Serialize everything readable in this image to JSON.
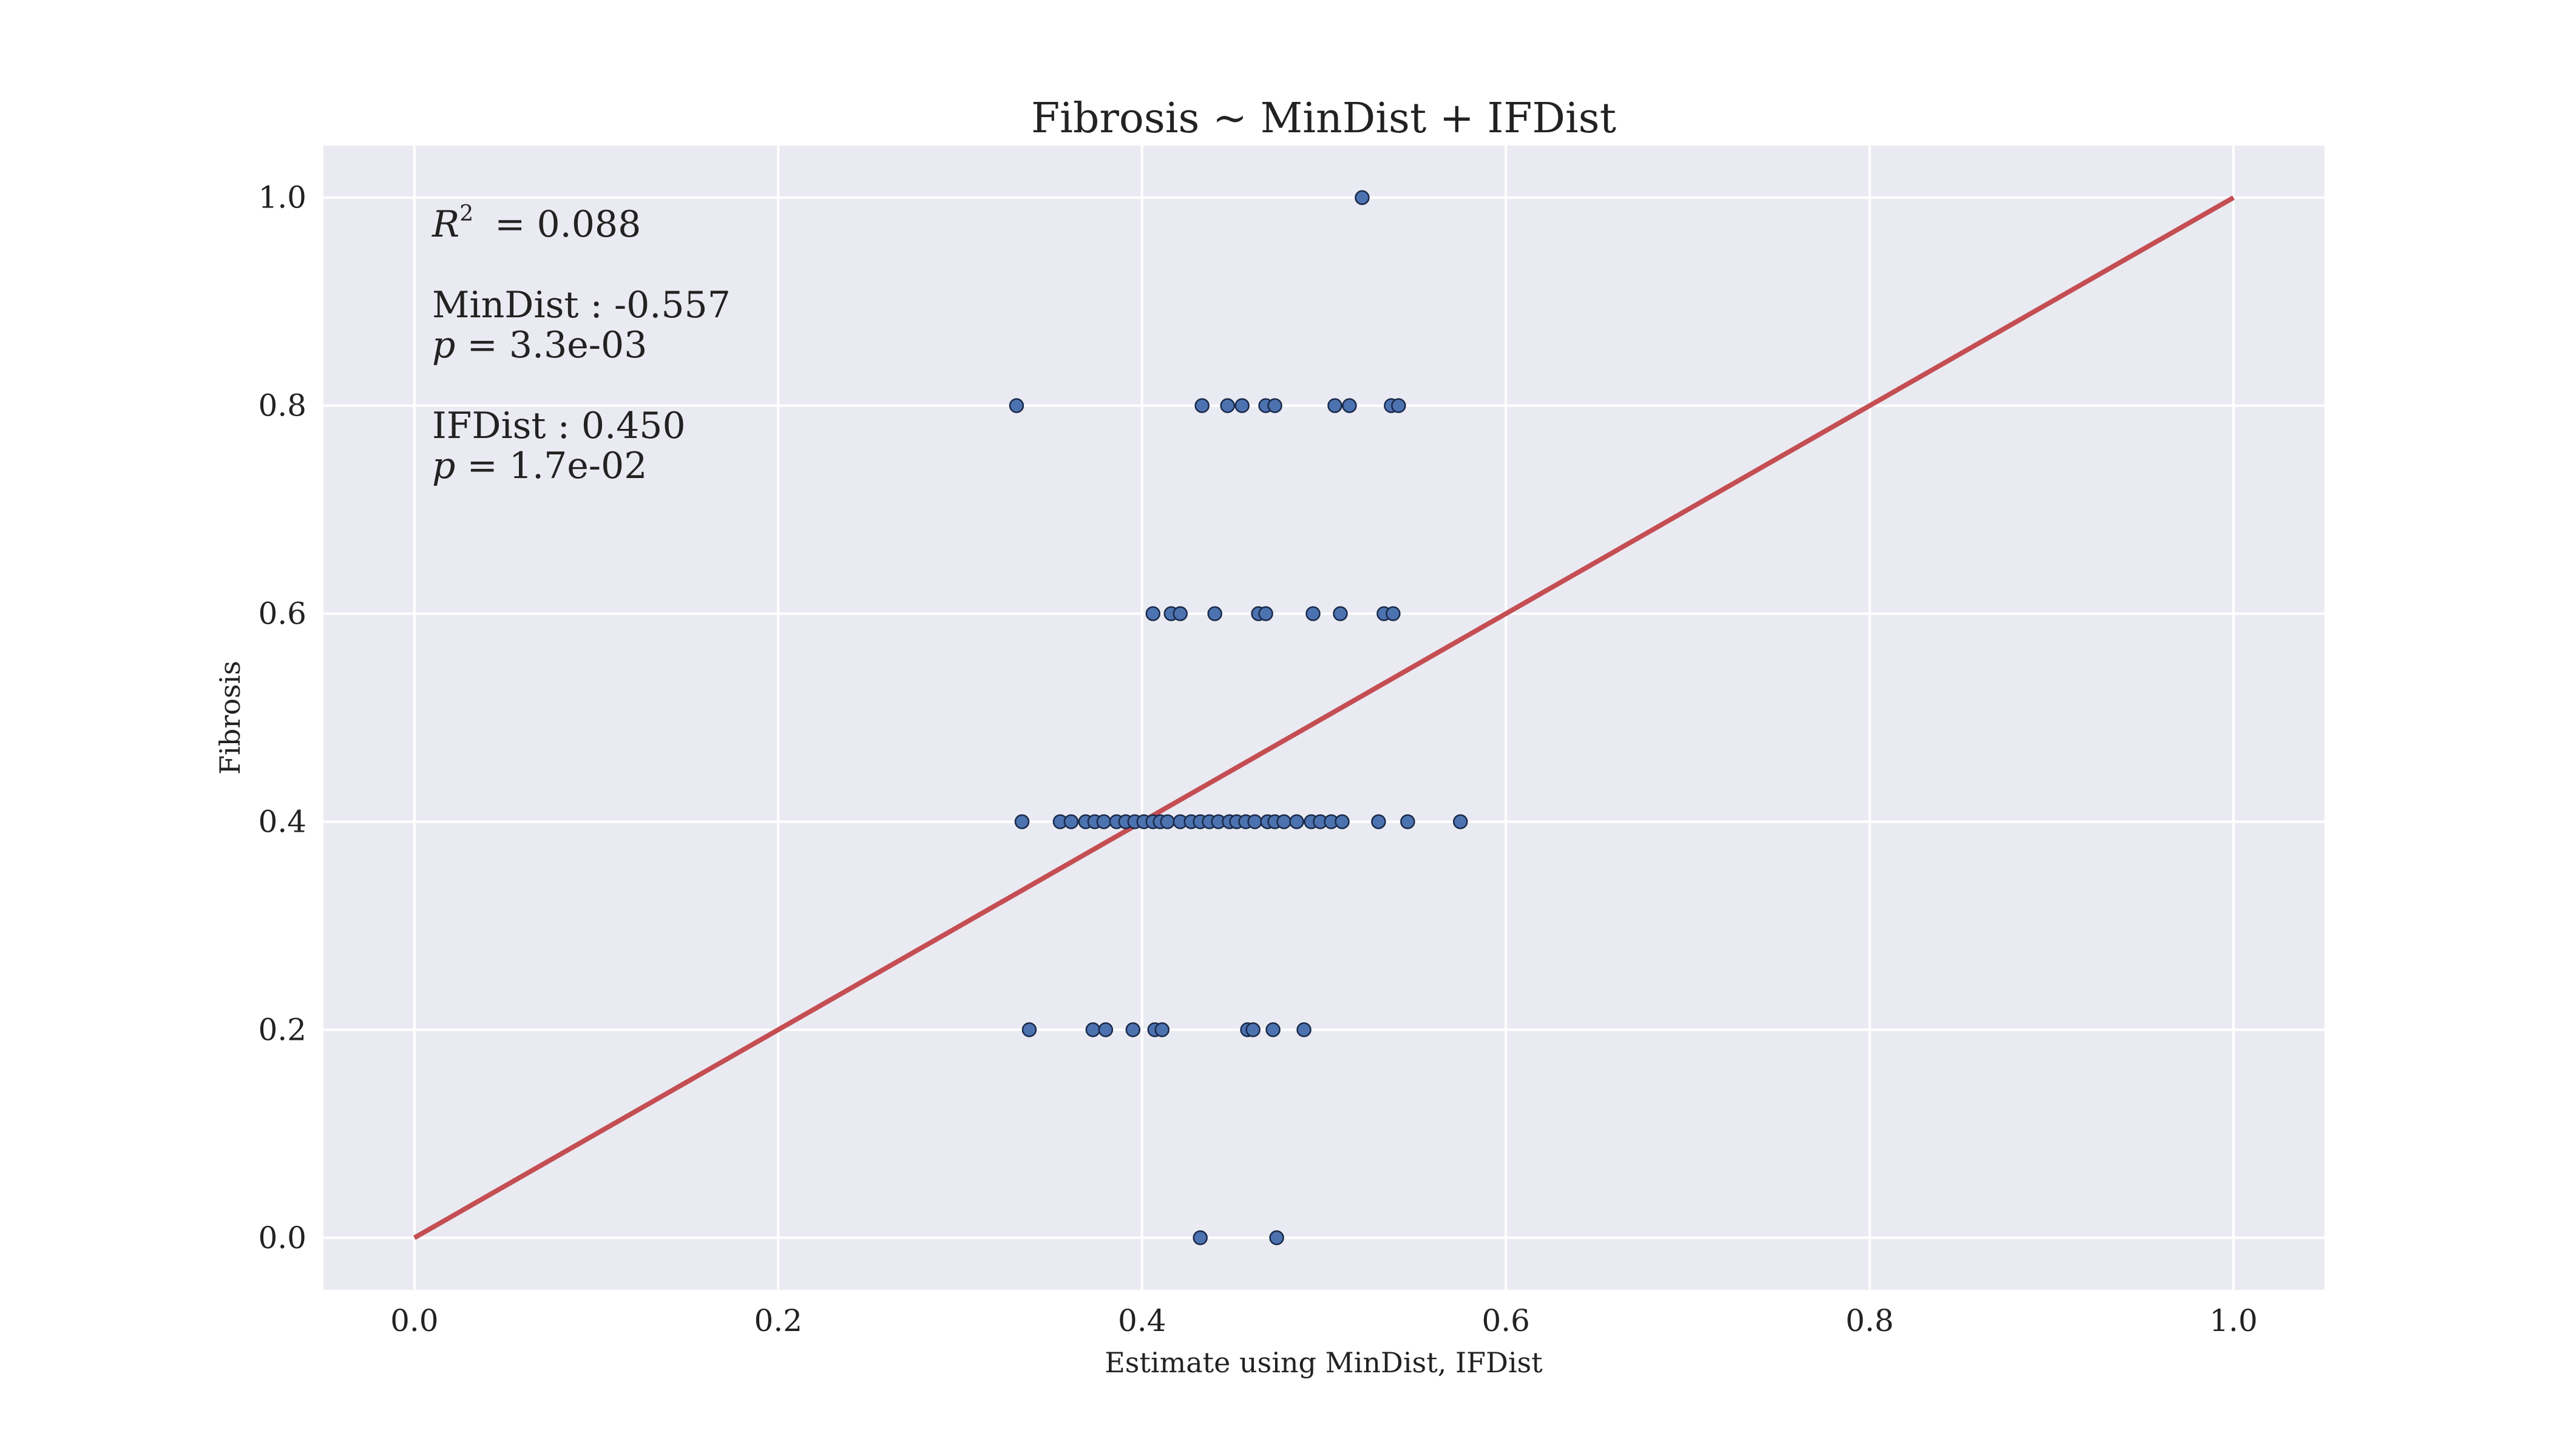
{
  "chart_data": {
    "type": "scatter",
    "title": "Fibrosis ~ MinDist + IFDist",
    "xlabel": "Estimate using MinDist, IFDist",
    "ylabel": "Fibrosis",
    "xlim": [
      -0.05,
      1.05
    ],
    "ylim": [
      -0.05,
      1.05
    ],
    "xticks": [
      0.0,
      0.2,
      0.4,
      0.6,
      0.8,
      1.0
    ],
    "yticks": [
      0.0,
      0.2,
      0.4,
      0.6,
      0.8,
      1.0
    ],
    "tick_labels": [
      "0.0",
      "0.2",
      "0.4",
      "0.6",
      "0.8",
      "1.0"
    ],
    "grid": true,
    "colors": {
      "background": "#eaeaf2",
      "grid": "#ffffff",
      "point_fill": "#4c72b0",
      "point_edge": "#1a2a4a",
      "reference_line": "#c44e52"
    },
    "reference_line": {
      "x": [
        0.0,
        1.0
      ],
      "y": [
        0.0,
        1.0
      ]
    },
    "annotations": {
      "r2_symbol": "R",
      "r2_sup": "2",
      "r2_value": " = 0.088",
      "mindist_coef": "MinDist : -0.557",
      "mindist_p_symbol": "p",
      "mindist_p_value": " = 3.3e-03",
      "ifdist_coef": "IFDist : 0.450",
      "ifdist_p_symbol": "p",
      "ifdist_p_value": " = 1.7e-02"
    },
    "points": [
      {
        "x": 0.521,
        "y": 1.0
      },
      {
        "x": 0.331,
        "y": 0.8
      },
      {
        "x": 0.433,
        "y": 0.8
      },
      {
        "x": 0.447,
        "y": 0.8
      },
      {
        "x": 0.455,
        "y": 0.8
      },
      {
        "x": 0.468,
        "y": 0.8
      },
      {
        "x": 0.473,
        "y": 0.8
      },
      {
        "x": 0.506,
        "y": 0.8
      },
      {
        "x": 0.514,
        "y": 0.8
      },
      {
        "x": 0.537,
        "y": 0.8
      },
      {
        "x": 0.541,
        "y": 0.8
      },
      {
        "x": 0.406,
        "y": 0.6
      },
      {
        "x": 0.416,
        "y": 0.6
      },
      {
        "x": 0.421,
        "y": 0.6
      },
      {
        "x": 0.44,
        "y": 0.6
      },
      {
        "x": 0.464,
        "y": 0.6
      },
      {
        "x": 0.468,
        "y": 0.6
      },
      {
        "x": 0.494,
        "y": 0.6
      },
      {
        "x": 0.509,
        "y": 0.6
      },
      {
        "x": 0.533,
        "y": 0.6
      },
      {
        "x": 0.538,
        "y": 0.6
      },
      {
        "x": 0.334,
        "y": 0.4
      },
      {
        "x": 0.355,
        "y": 0.4
      },
      {
        "x": 0.361,
        "y": 0.4
      },
      {
        "x": 0.369,
        "y": 0.4
      },
      {
        "x": 0.374,
        "y": 0.4
      },
      {
        "x": 0.379,
        "y": 0.4
      },
      {
        "x": 0.386,
        "y": 0.4
      },
      {
        "x": 0.391,
        "y": 0.4
      },
      {
        "x": 0.396,
        "y": 0.4
      },
      {
        "x": 0.401,
        "y": 0.4
      },
      {
        "x": 0.406,
        "y": 0.4
      },
      {
        "x": 0.41,
        "y": 0.4
      },
      {
        "x": 0.414,
        "y": 0.4
      },
      {
        "x": 0.421,
        "y": 0.4
      },
      {
        "x": 0.427,
        "y": 0.4
      },
      {
        "x": 0.432,
        "y": 0.4
      },
      {
        "x": 0.437,
        "y": 0.4
      },
      {
        "x": 0.442,
        "y": 0.4
      },
      {
        "x": 0.448,
        "y": 0.4
      },
      {
        "x": 0.452,
        "y": 0.4
      },
      {
        "x": 0.457,
        "y": 0.4
      },
      {
        "x": 0.462,
        "y": 0.4
      },
      {
        "x": 0.469,
        "y": 0.4
      },
      {
        "x": 0.473,
        "y": 0.4
      },
      {
        "x": 0.478,
        "y": 0.4
      },
      {
        "x": 0.485,
        "y": 0.4
      },
      {
        "x": 0.493,
        "y": 0.4
      },
      {
        "x": 0.498,
        "y": 0.4
      },
      {
        "x": 0.504,
        "y": 0.4
      },
      {
        "x": 0.51,
        "y": 0.4
      },
      {
        "x": 0.53,
        "y": 0.4
      },
      {
        "x": 0.546,
        "y": 0.4
      },
      {
        "x": 0.575,
        "y": 0.4
      },
      {
        "x": 0.338,
        "y": 0.2
      },
      {
        "x": 0.373,
        "y": 0.2
      },
      {
        "x": 0.38,
        "y": 0.2
      },
      {
        "x": 0.395,
        "y": 0.2
      },
      {
        "x": 0.407,
        "y": 0.2
      },
      {
        "x": 0.411,
        "y": 0.2
      },
      {
        "x": 0.458,
        "y": 0.2
      },
      {
        "x": 0.461,
        "y": 0.2
      },
      {
        "x": 0.472,
        "y": 0.2
      },
      {
        "x": 0.489,
        "y": 0.2
      },
      {
        "x": 0.432,
        "y": 0.0
      },
      {
        "x": 0.474,
        "y": 0.0
      }
    ]
  }
}
